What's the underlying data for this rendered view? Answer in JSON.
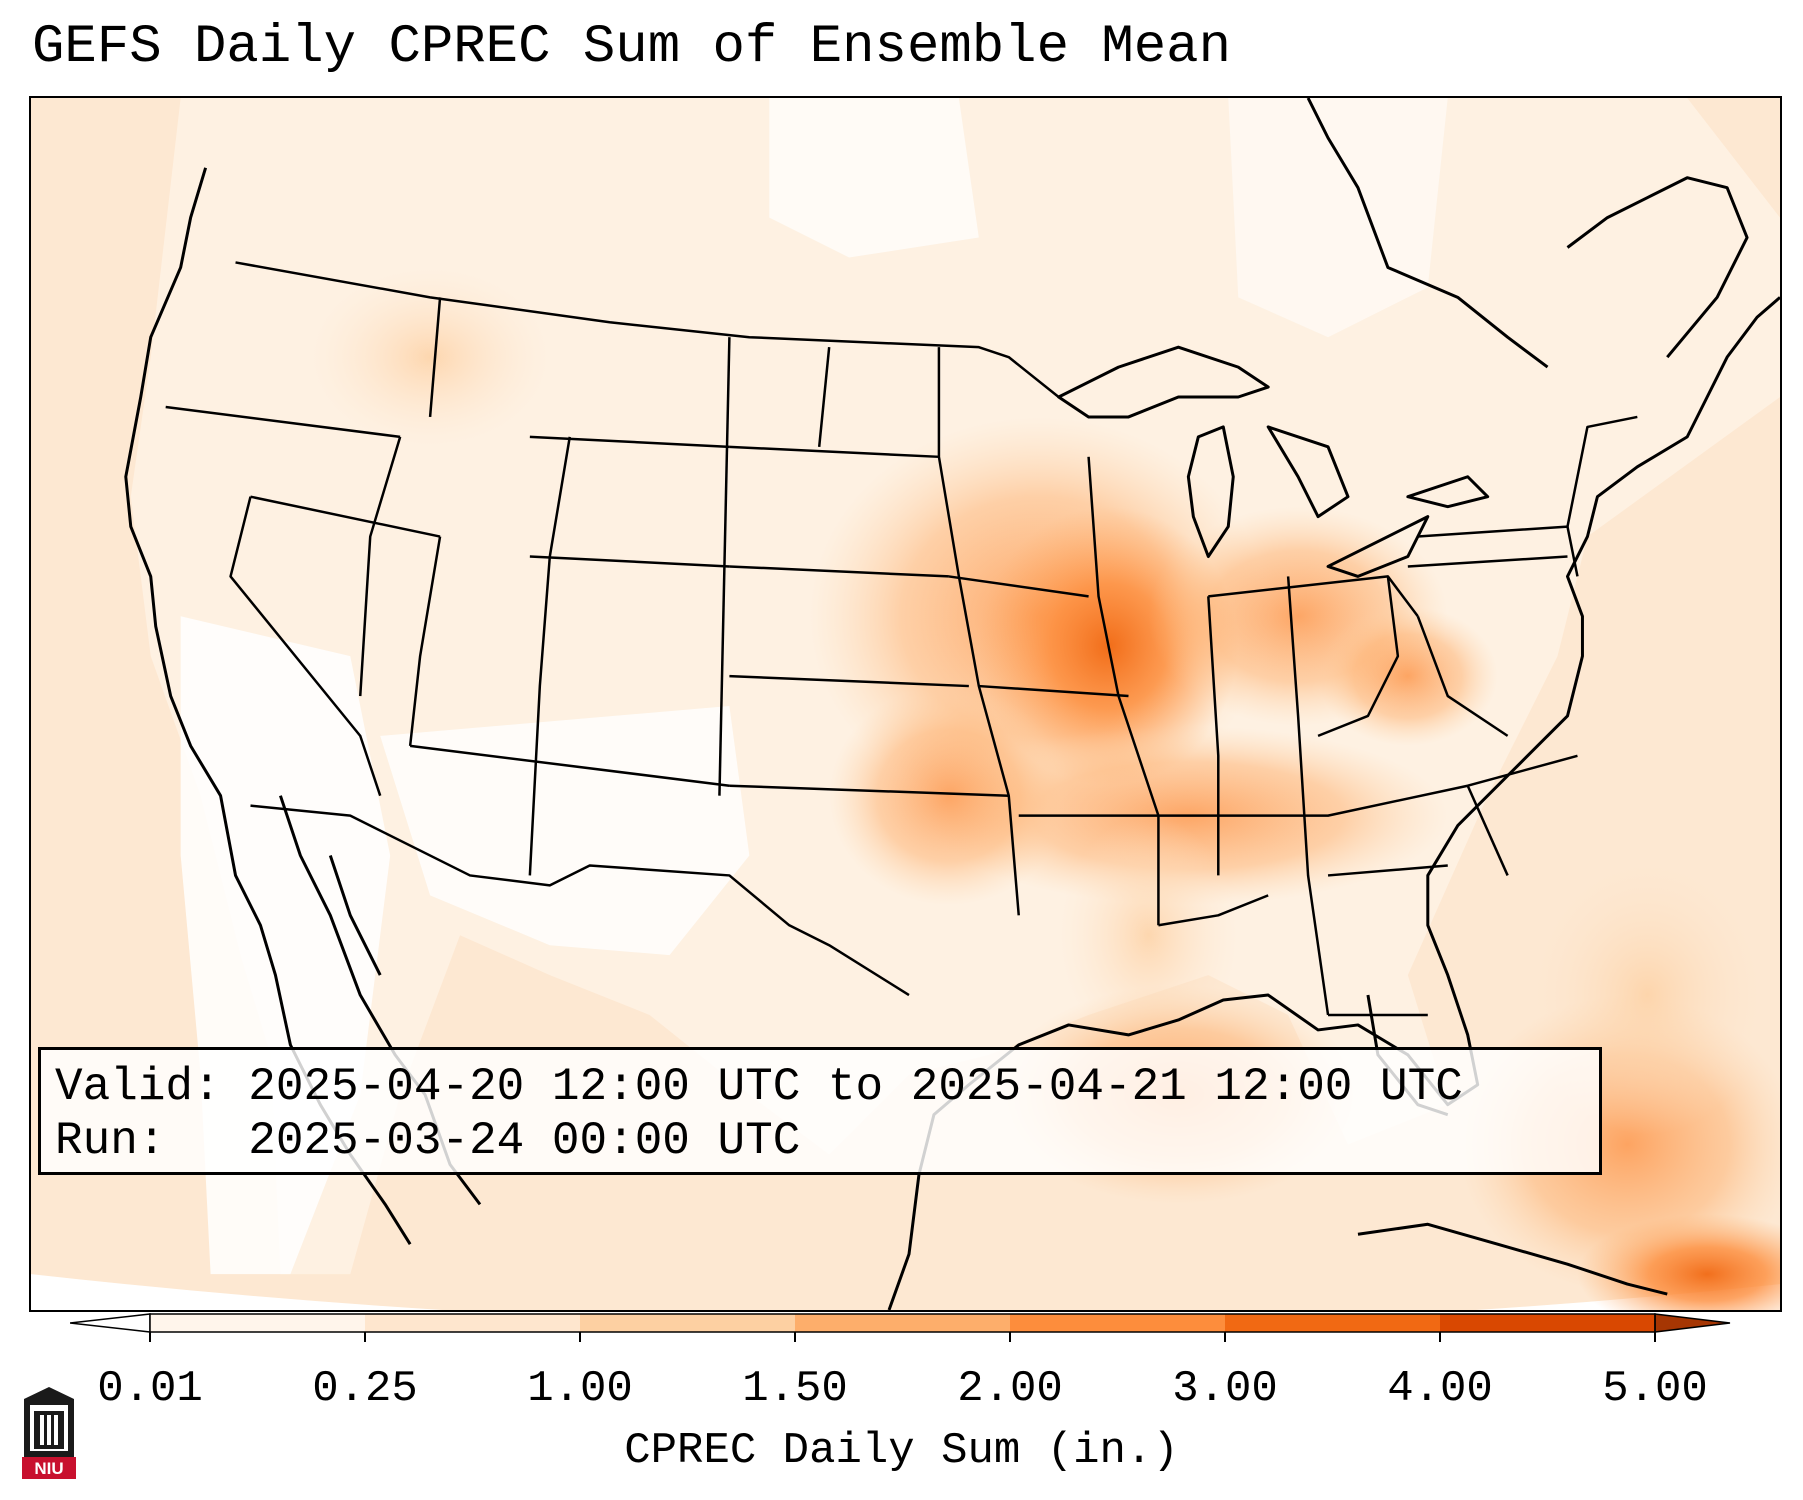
{
  "title": "GEFS Daily CPREC Sum of Ensemble Mean",
  "info": {
    "valid_line": "Valid: 2025-04-20 12:00 UTC to 2025-04-21 12:00 UTC",
    "run_line": "Run:   2025-03-24 00:00 UTC"
  },
  "colorbar": {
    "label": "CPREC Daily Sum (in.)",
    "ticks": [
      "0.01",
      "0.25",
      "1.00",
      "1.50",
      "2.00",
      "3.00",
      "4.00",
      "5.00"
    ],
    "colors": [
      "#fff5eb",
      "#fee6ce",
      "#fdd0a2",
      "#fdae6b",
      "#fd8d3c",
      "#f16913",
      "#d94801",
      "#a63603"
    ],
    "under_color": "#ffffff",
    "over_color": "#7f2704"
  },
  "logo": {
    "text": "NIU",
    "colors": {
      "building": "#1a1a1a",
      "banner": "#c8102e"
    }
  },
  "map": {
    "ocean_color": "#fef3e8",
    "outline_color": "#000000"
  }
}
